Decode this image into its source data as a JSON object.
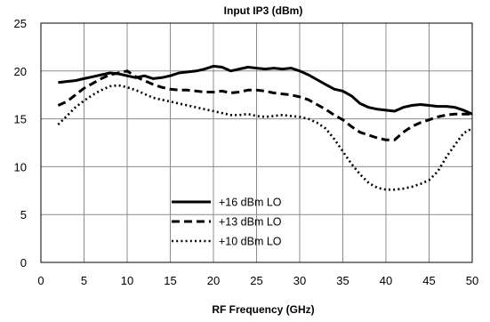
{
  "chart_data": {
    "type": "line",
    "title": "Input IP3 (dBm)",
    "xlabel": "RF Frequency (GHz)",
    "ylabel": "",
    "xlim": [
      0,
      50
    ],
    "ylim": [
      0,
      25
    ],
    "xticks": [
      0,
      5,
      10,
      15,
      20,
      25,
      30,
      35,
      40,
      45,
      50
    ],
    "yticks": [
      0,
      5,
      10,
      15,
      20,
      25
    ],
    "grid": true,
    "legend_position": "lower-center",
    "series": [
      {
        "name": "+16 dBm LO",
        "line_style": "solid",
        "color": "#000000",
        "x": [
          2,
          3,
          4,
          5,
          6,
          7,
          8,
          9,
          10,
          11,
          12,
          13,
          14,
          15,
          16,
          17,
          18,
          19,
          20,
          21,
          22,
          23,
          24,
          25,
          26,
          27,
          28,
          29,
          30,
          31,
          32,
          33,
          34,
          35,
          36,
          37,
          38,
          39,
          40,
          41,
          42,
          43,
          44,
          45,
          46,
          47,
          48,
          49,
          50
        ],
        "y": [
          18.8,
          18.9,
          19.0,
          19.2,
          19.4,
          19.6,
          19.8,
          19.7,
          19.5,
          19.3,
          19.5,
          19.2,
          19.3,
          19.5,
          19.8,
          19.9,
          20.0,
          20.2,
          20.5,
          20.4,
          20.0,
          20.2,
          20.4,
          20.3,
          20.2,
          20.3,
          20.2,
          20.3,
          20.0,
          19.6,
          19.1,
          18.6,
          18.1,
          17.9,
          17.4,
          16.6,
          16.2,
          16.0,
          15.9,
          15.8,
          16.2,
          16.4,
          16.5,
          16.4,
          16.3,
          16.3,
          16.2,
          15.9,
          15.5
        ]
      },
      {
        "name": "+13 dBm LO",
        "line_style": "dashed",
        "color": "#000000",
        "x": [
          2,
          3,
          4,
          5,
          6,
          7,
          8,
          9,
          10,
          11,
          12,
          13,
          14,
          15,
          16,
          17,
          18,
          19,
          20,
          21,
          22,
          23,
          24,
          25,
          26,
          27,
          28,
          29,
          30,
          31,
          32,
          33,
          34,
          35,
          36,
          37,
          38,
          39,
          40,
          41,
          42,
          43,
          44,
          45,
          46,
          47,
          48,
          49,
          50
        ],
        "y": [
          16.4,
          16.8,
          17.5,
          18.2,
          18.7,
          19.2,
          19.6,
          19.8,
          20.0,
          19.4,
          19.0,
          18.6,
          18.3,
          18.1,
          18.0,
          18.0,
          17.9,
          17.8,
          17.8,
          17.9,
          17.7,
          17.8,
          18.0,
          18.0,
          17.9,
          17.7,
          17.6,
          17.5,
          17.3,
          17.0,
          16.5,
          16.0,
          15.4,
          14.9,
          14.2,
          13.6,
          13.3,
          13.0,
          12.8,
          12.8,
          13.6,
          14.2,
          14.6,
          14.9,
          15.2,
          15.4,
          15.5,
          15.5,
          15.5
        ]
      },
      {
        "name": "+10 dBm LO",
        "line_style": "dotted",
        "color": "#000000",
        "x": [
          2,
          3,
          4,
          5,
          6,
          7,
          8,
          9,
          10,
          11,
          12,
          13,
          14,
          15,
          16,
          17,
          18,
          19,
          20,
          21,
          22,
          23,
          24,
          25,
          26,
          27,
          28,
          29,
          30,
          31,
          32,
          33,
          34,
          35,
          36,
          37,
          38,
          39,
          40,
          41,
          42,
          43,
          44,
          45,
          46,
          47,
          48,
          49,
          50
        ],
        "y": [
          14.4,
          15.3,
          16.2,
          16.9,
          17.5,
          18.0,
          18.4,
          18.5,
          18.3,
          18.0,
          17.6,
          17.2,
          17.0,
          16.8,
          16.6,
          16.4,
          16.2,
          16.0,
          15.8,
          15.6,
          15.4,
          15.4,
          15.5,
          15.3,
          15.2,
          15.3,
          15.4,
          15.3,
          15.2,
          15.0,
          14.6,
          14.0,
          12.9,
          11.6,
          10.3,
          9.2,
          8.3,
          7.8,
          7.6,
          7.6,
          7.7,
          7.9,
          8.2,
          8.6,
          9.5,
          11.0,
          12.3,
          13.5,
          14.0
        ]
      }
    ]
  }
}
